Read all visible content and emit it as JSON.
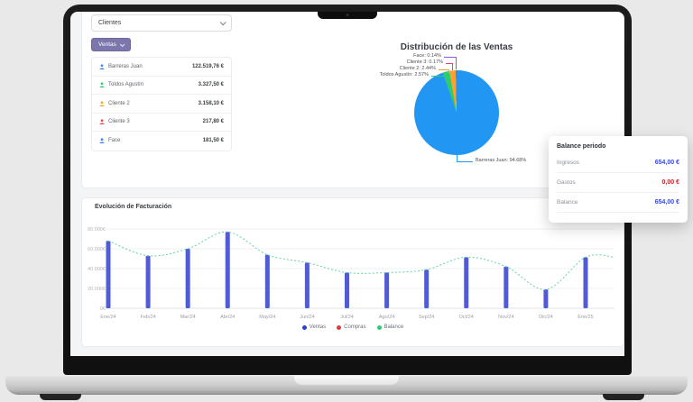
{
  "dashboard": {
    "client_select": {
      "value": "Clientes"
    },
    "ventas_button": {
      "label": "Ventas"
    },
    "client_list": [
      {
        "name": "Barreras Juan",
        "amount": "122.519,76 €",
        "color": "#3b82f6"
      },
      {
        "name": "Toldos Agustín",
        "amount": "3.327,50 €",
        "color": "#2ecc71"
      },
      {
        "name": "Cliente 2",
        "amount": "3.158,10 €",
        "color": "#f5a623"
      },
      {
        "name": "Cliente 3",
        "amount": "217,80 €",
        "color": "#ef4444"
      },
      {
        "name": "Face",
        "amount": "181,50 €",
        "color": "#3b82f6"
      }
    ],
    "balance_card": {
      "title": "Balance periodo",
      "rows": [
        {
          "label": "Ingresos",
          "value": "654,00 €",
          "color": "#3a4bd8"
        },
        {
          "label": "Gastos",
          "value": "0,00 €",
          "color": "#c2262e"
        },
        {
          "label": "Balance",
          "value": "654,00 €",
          "color": "#3a4bd8"
        }
      ]
    }
  },
  "chart_data": [
    {
      "type": "pie",
      "title": "Distribución de las Ventas",
      "labels": [
        "Barreras Juan",
        "Toldos Agustín",
        "Cliente 2",
        "Cliente 3",
        "Face"
      ],
      "values": [
        94.68,
        2.57,
        2.44,
        0.17,
        0.14
      ],
      "unit": "%",
      "colors": [
        "#2196f3",
        "#2ecc71",
        "#ffa033",
        "#f43f5e",
        "#7c5cff"
      ],
      "callouts": [
        "Face: 0.14%",
        "Cliente 3: 0.17%",
        "Cliente 2: 2.44%",
        "Toldos Agustín: 2.57%",
        "Barreras Juan: 94.68%"
      ]
    },
    {
      "type": "bar",
      "title": "Evolución de Facturación",
      "categories": [
        "Ene/24",
        "Feb/24",
        "Mar/24",
        "Abr/24",
        "May/24",
        "Jun/24",
        "Jul/24",
        "Ago/24",
        "Sep/24",
        "Oct/24",
        "Nov/24",
        "Dic/24",
        "Ene/25"
      ],
      "ylim": [
        0,
        80000
      ],
      "yticks": [
        "0€",
        "20.000€",
        "40.000€",
        "60.000€",
        "80.000€"
      ],
      "series": [
        {
          "name": "Ventas",
          "kind": "bar",
          "color": "#515cd4",
          "values": [
            68000,
            53000,
            60000,
            77000,
            54000,
            46000,
            36000,
            36000,
            39000,
            51500,
            42000,
            19000,
            51500
          ]
        },
        {
          "name": "Compras",
          "kind": "bar",
          "color": "#e0393f",
          "values": [
            0,
            0,
            0,
            0,
            0,
            0,
            0,
            0,
            0,
            0,
            0,
            0,
            0
          ]
        },
        {
          "name": "Balance",
          "kind": "line",
          "color": "#63d69c",
          "values": [
            68000,
            53000,
            60000,
            77000,
            54000,
            46000,
            36000,
            36000,
            39000,
            51500,
            42000,
            19000,
            51500
          ]
        }
      ]
    }
  ]
}
